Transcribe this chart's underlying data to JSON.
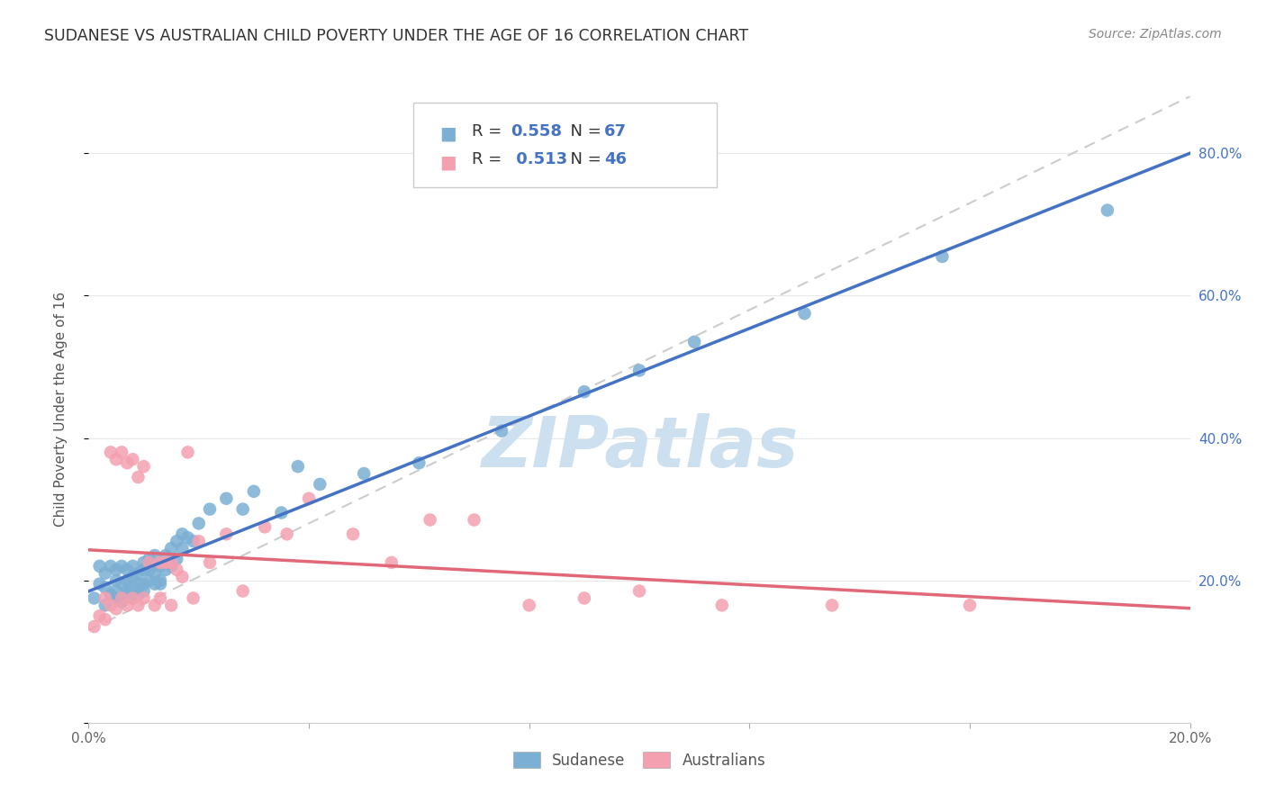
{
  "title": "SUDANESE VS AUSTRALIAN CHILD POVERTY UNDER THE AGE OF 16 CORRELATION CHART",
  "source": "Source: ZipAtlas.com",
  "ylabel": "Child Poverty Under the Age of 16",
  "r_sudanese": 0.558,
  "n_sudanese": 67,
  "r_australians": 0.513,
  "n_australians": 46,
  "xlim": [
    0.0,
    0.2
  ],
  "ylim": [
    0.0,
    0.88
  ],
  "color_sudanese": "#7bafd4",
  "color_australians": "#f4a0b0",
  "trend_color_sudanese": "#4472c4",
  "trend_color_australians": "#e06878",
  "watermark": "ZIPatlas",
  "watermark_color": "#cce0f0",
  "grid_color": "#e8e8e8",
  "sudanese_x": [
    0.001,
    0.002,
    0.002,
    0.003,
    0.003,
    0.003,
    0.004,
    0.004,
    0.005,
    0.005,
    0.005,
    0.005,
    0.006,
    0.006,
    0.006,
    0.006,
    0.007,
    0.007,
    0.007,
    0.007,
    0.008,
    0.008,
    0.008,
    0.008,
    0.009,
    0.009,
    0.009,
    0.01,
    0.01,
    0.01,
    0.01,
    0.011,
    0.011,
    0.011,
    0.012,
    0.012,
    0.012,
    0.013,
    0.013,
    0.013,
    0.014,
    0.014,
    0.015,
    0.015,
    0.016,
    0.016,
    0.017,
    0.017,
    0.018,
    0.019,
    0.02,
    0.022,
    0.025,
    0.028,
    0.03,
    0.035,
    0.038,
    0.042,
    0.05,
    0.06,
    0.075,
    0.09,
    0.1,
    0.11,
    0.13,
    0.155,
    0.185
  ],
  "sudanese_y": [
    0.175,
    0.195,
    0.22,
    0.165,
    0.21,
    0.19,
    0.18,
    0.22,
    0.175,
    0.2,
    0.185,
    0.215,
    0.17,
    0.195,
    0.22,
    0.175,
    0.18,
    0.2,
    0.215,
    0.185,
    0.175,
    0.19,
    0.205,
    0.22,
    0.18,
    0.195,
    0.21,
    0.195,
    0.215,
    0.225,
    0.185,
    0.2,
    0.215,
    0.23,
    0.195,
    0.21,
    0.235,
    0.2,
    0.22,
    0.195,
    0.215,
    0.235,
    0.22,
    0.245,
    0.23,
    0.255,
    0.245,
    0.265,
    0.26,
    0.255,
    0.28,
    0.3,
    0.315,
    0.3,
    0.325,
    0.295,
    0.36,
    0.335,
    0.35,
    0.365,
    0.41,
    0.465,
    0.495,
    0.535,
    0.575,
    0.655,
    0.72
  ],
  "australians_x": [
    0.001,
    0.002,
    0.003,
    0.003,
    0.004,
    0.004,
    0.005,
    0.005,
    0.006,
    0.006,
    0.007,
    0.007,
    0.008,
    0.008,
    0.009,
    0.009,
    0.01,
    0.01,
    0.011,
    0.012,
    0.013,
    0.013,
    0.014,
    0.015,
    0.015,
    0.016,
    0.017,
    0.018,
    0.019,
    0.02,
    0.022,
    0.025,
    0.028,
    0.032,
    0.036,
    0.04,
    0.048,
    0.055,
    0.062,
    0.07,
    0.08,
    0.09,
    0.1,
    0.115,
    0.135,
    0.16
  ],
  "australians_y": [
    0.135,
    0.15,
    0.145,
    0.175,
    0.38,
    0.165,
    0.37,
    0.16,
    0.175,
    0.38,
    0.165,
    0.365,
    0.37,
    0.175,
    0.165,
    0.345,
    0.36,
    0.175,
    0.225,
    0.165,
    0.225,
    0.175,
    0.225,
    0.165,
    0.225,
    0.215,
    0.205,
    0.38,
    0.175,
    0.255,
    0.225,
    0.265,
    0.185,
    0.275,
    0.265,
    0.315,
    0.265,
    0.225,
    0.285,
    0.285,
    0.165,
    0.175,
    0.185,
    0.165,
    0.165,
    0.165
  ]
}
